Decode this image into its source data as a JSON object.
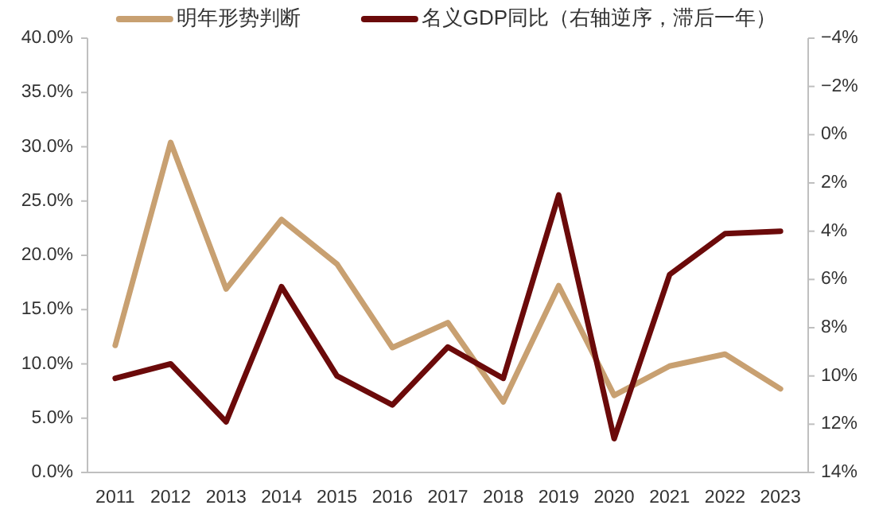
{
  "chart_data": {
    "type": "line",
    "categories": [
      "2011",
      "2012",
      "2013",
      "2014",
      "2015",
      "2016",
      "2017",
      "2018",
      "2019",
      "2020",
      "2021",
      "2022",
      "2023"
    ],
    "series": [
      {
        "name": "明年形势判断",
        "color": "#c8a071",
        "values": [
          11.7,
          30.4,
          16.9,
          23.3,
          19.2,
          11.5,
          13.8,
          6.5,
          17.2,
          7.1,
          9.8,
          10.9,
          7.7
        ]
      },
      {
        "name": "名义GDP同比（右轴逆序，滞后一年）",
        "color": "#6b0a0a",
        "axis": "y2",
        "values": [
          10.1,
          9.5,
          11.9,
          6.3,
          10.0,
          11.2,
          8.8,
          10.1,
          2.5,
          12.6,
          5.8,
          4.1,
          4.0
        ]
      }
    ],
    "ylim": [
      0,
      40
    ],
    "yticks": [
      {
        "value": 0,
        "label": "0.0%"
      },
      {
        "value": 5,
        "label": "5.0%"
      },
      {
        "value": 10,
        "label": "10.0%"
      },
      {
        "value": 15,
        "label": "15.0%"
      },
      {
        "value": 20,
        "label": "20.0%"
      },
      {
        "value": 25,
        "label": "25.0%"
      },
      {
        "value": 30,
        "label": "30.0%"
      },
      {
        "value": 35,
        "label": "35.0%"
      },
      {
        "value": 40,
        "label": "40.0%"
      }
    ],
    "y2lim": [
      14,
      -4
    ],
    "y2ticks": [
      {
        "value": -4,
        "label": "−4%"
      },
      {
        "value": -2,
        "label": "−2%"
      },
      {
        "value": 0,
        "label": "0%"
      },
      {
        "value": 2,
        "label": "2%"
      },
      {
        "value": 4,
        "label": "4%"
      },
      {
        "value": 6,
        "label": "6%"
      },
      {
        "value": 8,
        "label": "8%"
      },
      {
        "value": 10,
        "label": "10%"
      },
      {
        "value": 12,
        "label": "12%"
      },
      {
        "value": 14,
        "label": "14%"
      }
    ],
    "legend": "top",
    "grid": false,
    "marker": "none",
    "line_style": "solid"
  }
}
